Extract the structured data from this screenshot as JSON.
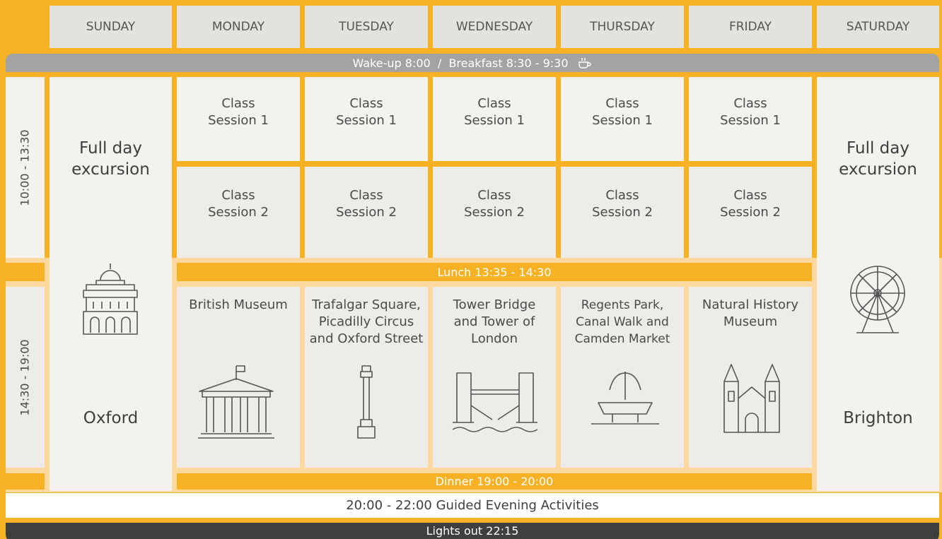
{
  "days": [
    "SUNDAY",
    "MONDAY",
    "TUESDAY",
    "WEDNESDAY",
    "THURSDAY",
    "FRIDAY",
    "SATURDAY"
  ],
  "breakfast": "Wake-up 8:00  /  Breakfast 8:30 - 9:30",
  "time_slots": [
    "10:00 - 13:30",
    "14:30 - 19:00"
  ],
  "excursions": [
    {
      "title": "Full day excursion",
      "place": "Oxford"
    },
    {
      "title": "Full day excursion",
      "place": "Brighton"
    }
  ],
  "morning": [
    [
      "Class Session 1",
      "Class Session 2"
    ],
    [
      "Class Session 1",
      "Class Session 2"
    ],
    [
      "Class Session 1",
      "Class Session 2"
    ],
    [
      "Class Session 1",
      "Class Session 2"
    ],
    [
      "Class Session 1",
      "Class Session 2"
    ]
  ],
  "lunch": "Lunch 13:35 - 14:30",
  "activities": [
    "British Museum",
    "Trafalgar Square, Picadilly Circus and Oxford Street",
    "Tower Bridge and Tower of London",
    "Regents Park, Canal Walk and Camden Market",
    "Natural History Museum"
  ],
  "dinner": "Dinner 19:00 - 20:00",
  "evening": "20:00 - 22:00 Guided Evening Activities",
  "lights_out": "Lights out 22:15"
}
